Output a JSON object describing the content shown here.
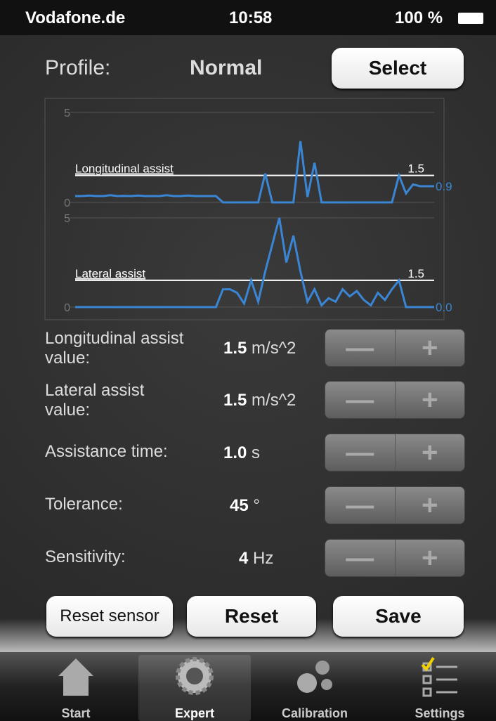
{
  "status_bar": {
    "carrier": "Vodafone.de",
    "time": "10:58",
    "battery": "100 %"
  },
  "profile": {
    "label": "Profile:",
    "value": "Normal",
    "button": "Select"
  },
  "charts": [
    {
      "type": "line",
      "color": "#3a86d4",
      "ylim": [
        0,
        5
      ],
      "yticks": [
        0,
        5
      ],
      "threshold": {
        "label": "Longitudinal assist",
        "value": 1.5
      },
      "end_label": "0.9",
      "values": [
        0.35,
        0.35,
        0.38,
        0.35,
        0.35,
        0.4,
        0.35,
        0.36,
        0.35,
        0.38,
        0.35,
        0.35,
        0.35,
        0.4,
        0.35,
        0.35,
        0.38,
        0.35,
        0.35,
        0.35,
        0.35,
        0,
        0,
        0,
        0,
        0,
        0,
        1.6,
        0,
        0,
        0,
        0,
        3.4,
        0.3,
        2.2,
        0,
        0,
        0,
        0,
        0,
        0,
        0,
        0,
        0,
        0,
        0,
        1.5,
        0.5,
        1.0,
        0.9,
        0.9,
        0.9
      ]
    },
    {
      "type": "line",
      "color": "#3a86d4",
      "ylim": [
        0,
        5
      ],
      "yticks": [
        0,
        5
      ],
      "threshold": {
        "label": "Lateral assist",
        "value": 1.5
      },
      "end_label": "0.0",
      "values": [
        0,
        0,
        0,
        0,
        0,
        0,
        0,
        0,
        0,
        0,
        0,
        0,
        0,
        0,
        0,
        0,
        0,
        0,
        0,
        0,
        0,
        1.0,
        1.0,
        0.8,
        0.2,
        1.5,
        0.3,
        2.0,
        3.5,
        5.0,
        2.5,
        4.0,
        2.0,
        0.3,
        1.0,
        0.1,
        0.5,
        0.3,
        1.0,
        0.6,
        0.9,
        0.4,
        0.1,
        0.8,
        0.4,
        1.0,
        1.5,
        0,
        0,
        0,
        0,
        0
      ]
    }
  ],
  "settings": [
    {
      "label": "Longitudinal assist value:",
      "value": "1.5",
      "unit": "m/s^2"
    },
    {
      "label": "Lateral assist value:",
      "value": "1.5",
      "unit": "m/s^2"
    },
    {
      "label": "Assistance time:",
      "value": "1.0",
      "unit": "s"
    },
    {
      "label": "Tolerance:",
      "value": "45",
      "unit": "°"
    },
    {
      "label": "Sensitivity:",
      "value": "4",
      "unit": "Hz"
    }
  ],
  "buttons": [
    "Reset sensor",
    "Reset",
    "Save"
  ],
  "tabs": [
    "Start",
    "Expert",
    "Calibration",
    "Settings"
  ]
}
